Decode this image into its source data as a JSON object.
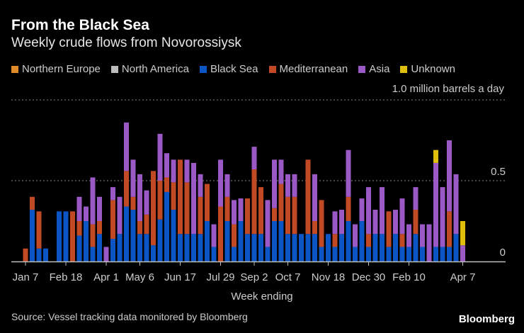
{
  "header": {
    "title": "From the Black Sea",
    "subtitle": "Weekly crude flows from Novorossiysk"
  },
  "footer": {
    "source": "Source: Vessel tracking data monitored by Bloomberg",
    "brand": "Bloomberg"
  },
  "chart_data": {
    "type": "bar",
    "stacked": true,
    "title": "From the Black Sea",
    "subtitle": "Weekly crude flows from Novorossiysk",
    "xlabel": "Week ending",
    "ylabel": "million barrels a day",
    "unit_label": "1.0 million barrels a day",
    "ylim": [
      0,
      1.0
    ],
    "yticks": [
      {
        "value": 0,
        "label": "0"
      },
      {
        "value": 0.5,
        "label": "0.5"
      },
      {
        "value": 1.0,
        "label": "1.0"
      }
    ],
    "grid": "dotted horizontal",
    "legend_position": "top",
    "num_weeks": 66,
    "xticks": [
      {
        "week": 0,
        "label": "Jan 7"
      },
      {
        "week": 6,
        "label": "Feb 18"
      },
      {
        "week": 12,
        "label": "Apr 1"
      },
      {
        "week": 17,
        "label": "May 6"
      },
      {
        "week": 23,
        "label": "Jun 17"
      },
      {
        "week": 29,
        "label": "Jul 29"
      },
      {
        "week": 34,
        "label": "Sep 2"
      },
      {
        "week": 39,
        "label": "Oct 7"
      },
      {
        "week": 45,
        "label": "Nov 18"
      },
      {
        "week": 51,
        "label": "Dec 30"
      },
      {
        "week": 57,
        "label": "Feb 10"
      },
      {
        "week": 65,
        "label": "Apr 7"
      }
    ],
    "series": [
      {
        "name": "Northern Europe",
        "color": "#e08a2a",
        "values": [
          0,
          0,
          0,
          0,
          0,
          0,
          0,
          0,
          0,
          0,
          0,
          0,
          0,
          0,
          0,
          0,
          0,
          0,
          0,
          0,
          0,
          0,
          0,
          0,
          0,
          0,
          0,
          0,
          0,
          0,
          0,
          0,
          0,
          0,
          0,
          0,
          0,
          0,
          0,
          0,
          0,
          0,
          0,
          0,
          0,
          0,
          0,
          0,
          0,
          0,
          0,
          0,
          0,
          0,
          0,
          0,
          0,
          0,
          0,
          0,
          0,
          0,
          0,
          0,
          0,
          0
        ]
      },
      {
        "name": "North America",
        "color": "#bdbdbd",
        "values": [
          0,
          0,
          0,
          0,
          0,
          0,
          0,
          0,
          0,
          0,
          0,
          0,
          0,
          0,
          0,
          0,
          0,
          0,
          0,
          0,
          0,
          0,
          0,
          0,
          0,
          0,
          0,
          0,
          0,
          0,
          0,
          0,
          0,
          0,
          0,
          0,
          0,
          0,
          0,
          0,
          0,
          0,
          0,
          0,
          0,
          0,
          0,
          0,
          0,
          0,
          0,
          0,
          0,
          0,
          0,
          0,
          0,
          0,
          0,
          0,
          0,
          0,
          0,
          0,
          0,
          0
        ]
      },
      {
        "name": "Black Sea",
        "color": "#0b55c4",
        "values": [
          0,
          0.32,
          0.08,
          0.08,
          0,
          0.31,
          0.31,
          0,
          0.16,
          0.25,
          0.09,
          0.17,
          0,
          0.14,
          0.17,
          0.34,
          0.32,
          0.17,
          0.17,
          0.1,
          0.26,
          0.43,
          0.32,
          0.17,
          0.17,
          0.17,
          0.17,
          0.25,
          0.09,
          0,
          0.25,
          0.09,
          0.25,
          0.17,
          0.17,
          0.17,
          0.09,
          0.25,
          0.25,
          0.17,
          0.17,
          0.17,
          0.17,
          0.17,
          0.09,
          0.17,
          0.09,
          0.17,
          0.25,
          0.09,
          0.25,
          0.09,
          0.17,
          0.17,
          0.09,
          0.17,
          0.09,
          0.09,
          0.17,
          0.09,
          0,
          0.09,
          0.09,
          0.09,
          0.17,
          0
        ]
      },
      {
        "name": "Mediterranean",
        "color": "#c14a24",
        "values": [
          0.08,
          0.08,
          0.23,
          0,
          0,
          0,
          0,
          0.31,
          0.09,
          0,
          0.14,
          0.08,
          0,
          0.24,
          0,
          0.22,
          0.08,
          0.08,
          0.12,
          0.46,
          0.24,
          0.09,
          0.17,
          0.46,
          0.32,
          0,
          0.23,
          0.23,
          0,
          0.34,
          0.15,
          0.14,
          0,
          0.22,
          0.4,
          0.29,
          0,
          0.08,
          0.23,
          0.23,
          0.23,
          0,
          0.46,
          0.08,
          0.29,
          0,
          0.08,
          0,
          0.15,
          0,
          0,
          0.08,
          0,
          0,
          0.22,
          0,
          0.08,
          0,
          0.15,
          0,
          0,
          0,
          0,
          0.22,
          0,
          0
        ]
      },
      {
        "name": "Asia",
        "color": "#9b59c6",
        "values": [
          0,
          0,
          0,
          0,
          0,
          0,
          0,
          0,
          0.15,
          0.09,
          0.29,
          0.15,
          0.09,
          0.08,
          0.23,
          0.3,
          0.23,
          0.29,
          0.15,
          0,
          0.29,
          0.15,
          0.14,
          0,
          0.14,
          0.44,
          0.14,
          0,
          0.14,
          0.29,
          0.14,
          0.15,
          0.14,
          0,
          0.14,
          0,
          0.29,
          0.3,
          0.15,
          0.14,
          0.14,
          0,
          0,
          0.29,
          0,
          0,
          0.14,
          0.15,
          0.29,
          0.14,
          0.14,
          0.29,
          0.15,
          0.29,
          0,
          0.15,
          0.22,
          0.14,
          0.14,
          0.14,
          0.23,
          0.52,
          0.37,
          0.44,
          0.37,
          0.1
        ]
      },
      {
        "name": "Unknown",
        "color": "#e0be0c",
        "values": [
          0,
          0,
          0,
          0,
          0,
          0,
          0,
          0,
          0,
          0,
          0,
          0,
          0,
          0,
          0,
          0,
          0,
          0,
          0,
          0,
          0,
          0,
          0,
          0,
          0,
          0,
          0,
          0,
          0,
          0,
          0,
          0,
          0,
          0,
          0,
          0,
          0,
          0,
          0,
          0,
          0,
          0,
          0,
          0,
          0,
          0,
          0,
          0,
          0,
          0,
          0,
          0,
          0,
          0,
          0,
          0,
          0,
          0,
          0,
          0,
          0,
          0.08,
          0,
          0,
          0,
          0.15
        ]
      }
    ]
  }
}
